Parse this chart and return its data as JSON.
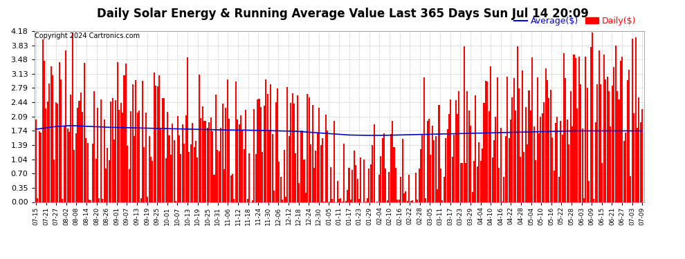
{
  "title": "Daily Solar Energy & Running Average Value Last 365 Days Sun Jul 14 20:09",
  "copyright": "Copyright 2024 Cartronics.com",
  "legend_avg": "Average($)",
  "legend_daily": "Daily($)",
  "bar_color": "#ff0000",
  "avg_line_color": "#0000cc",
  "background_color": "#ffffff",
  "grid_color": "#bbbbbb",
  "ylim": [
    0.0,
    4.18
  ],
  "yticks": [
    0.0,
    0.35,
    0.7,
    1.04,
    1.39,
    1.74,
    2.09,
    2.44,
    2.79,
    3.13,
    3.48,
    3.83,
    4.18
  ],
  "title_fontsize": 12,
  "copyright_fontsize": 7,
  "legend_fontsize": 9,
  "n_bars": 365,
  "avg_line_points": [
    1.78,
    1.84,
    1.87,
    1.85,
    1.83,
    1.82,
    1.81,
    1.8,
    1.79,
    1.78,
    1.77,
    1.76,
    1.76,
    1.75,
    1.74,
    1.73,
    1.7,
    1.67,
    1.64,
    1.63,
    1.63,
    1.64,
    1.65,
    1.66,
    1.67,
    1.68,
    1.69,
    1.7,
    1.71,
    1.72,
    1.73,
    1.74,
    1.74,
    1.74,
    1.74,
    1.74
  ],
  "x_labels": [
    "07-15",
    "07-21",
    "07-27",
    "08-02",
    "08-08",
    "08-14",
    "08-20",
    "08-26",
    "09-01",
    "09-07",
    "09-13",
    "09-19",
    "09-25",
    "10-01",
    "10-07",
    "10-13",
    "10-19",
    "10-25",
    "10-31",
    "11-06",
    "11-12",
    "11-18",
    "11-24",
    "11-30",
    "12-06",
    "12-12",
    "12-18",
    "12-24",
    "12-30",
    "01-05",
    "01-11",
    "01-17",
    "01-23",
    "01-29",
    "02-04",
    "02-10",
    "02-16",
    "02-22",
    "02-28",
    "03-05",
    "03-11",
    "03-17",
    "03-23",
    "03-29",
    "04-04",
    "04-10",
    "04-16",
    "04-22",
    "04-28",
    "05-04",
    "05-10",
    "05-16",
    "05-22",
    "05-28",
    "06-03",
    "06-09",
    "06-15",
    "06-21",
    "06-27",
    "07-03",
    "07-09"
  ]
}
